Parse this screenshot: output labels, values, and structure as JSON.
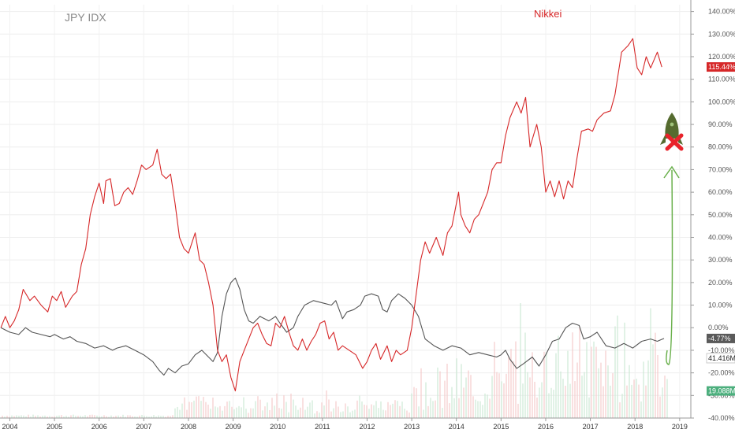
{
  "chart_data": {
    "type": "line",
    "title": "",
    "xlabel": "",
    "ylabel": "",
    "x_ticks": [
      "2004",
      "2005",
      "2006",
      "2007",
      "2008",
      "2009",
      "2010",
      "2011",
      "2012",
      "2013",
      "2014",
      "2015",
      "2016",
      "2017",
      "2018",
      "2019"
    ],
    "y_ticks": [
      "140.00%",
      "130.00%",
      "120.00%",
      "110.00%",
      "100.00%",
      "90.00%",
      "80.00%",
      "70.00%",
      "60.00%",
      "50.00%",
      "40.00%",
      "30.00%",
      "20.00%",
      "10.00%",
      "0.00%",
      "-10.00%",
      "-20.00%",
      "-30.00%",
      "-40.00%"
    ],
    "ylim": [
      -40,
      143
    ],
    "xlim": [
      2003.78,
      2019.25
    ],
    "grid": true,
    "series": [
      {
        "name": "JPY IDX",
        "color": "#555555",
        "points": [
          [
            2003.8,
            0
          ],
          [
            2004.0,
            -2
          ],
          [
            2004.2,
            -3
          ],
          [
            2004.35,
            0
          ],
          [
            2004.5,
            -2
          ],
          [
            2004.7,
            -3
          ],
          [
            2004.9,
            -4
          ],
          [
            2005.0,
            -3
          ],
          [
            2005.2,
            -5
          ],
          [
            2005.35,
            -4
          ],
          [
            2005.5,
            -6
          ],
          [
            2005.7,
            -7
          ],
          [
            2005.9,
            -9
          ],
          [
            2006.1,
            -8
          ],
          [
            2006.3,
            -10
          ],
          [
            2006.4,
            -9
          ],
          [
            2006.6,
            -8
          ],
          [
            2006.8,
            -10
          ],
          [
            2007.0,
            -12
          ],
          [
            2007.2,
            -15
          ],
          [
            2007.35,
            -19
          ],
          [
            2007.45,
            -21
          ],
          [
            2007.55,
            -18
          ],
          [
            2007.7,
            -20
          ],
          [
            2007.85,
            -17
          ],
          [
            2008.0,
            -16
          ],
          [
            2008.15,
            -12
          ],
          [
            2008.3,
            -10
          ],
          [
            2008.45,
            -13
          ],
          [
            2008.55,
            -15
          ],
          [
            2008.65,
            -11
          ],
          [
            2008.75,
            5
          ],
          [
            2008.85,
            15
          ],
          [
            2008.95,
            20
          ],
          [
            2009.05,
            22
          ],
          [
            2009.15,
            17
          ],
          [
            2009.25,
            8
          ],
          [
            2009.35,
            3
          ],
          [
            2009.45,
            2
          ],
          [
            2009.6,
            5
          ],
          [
            2009.8,
            3
          ],
          [
            2009.95,
            5
          ],
          [
            2010.05,
            2
          ],
          [
            2010.2,
            -2
          ],
          [
            2010.35,
            0
          ],
          [
            2010.45,
            5
          ],
          [
            2010.6,
            10
          ],
          [
            2010.8,
            12
          ],
          [
            2011.0,
            11
          ],
          [
            2011.2,
            10
          ],
          [
            2011.3,
            12
          ],
          [
            2011.45,
            4
          ],
          [
            2011.55,
            7
          ],
          [
            2011.7,
            8
          ],
          [
            2011.85,
            10
          ],
          [
            2011.95,
            14
          ],
          [
            2012.1,
            15
          ],
          [
            2012.25,
            14
          ],
          [
            2012.35,
            8
          ],
          [
            2012.45,
            7
          ],
          [
            2012.55,
            12
          ],
          [
            2012.7,
            15
          ],
          [
            2012.85,
            13
          ],
          [
            2013.0,
            10
          ],
          [
            2013.15,
            5
          ],
          [
            2013.3,
            -5
          ],
          [
            2013.5,
            -8
          ],
          [
            2013.7,
            -10
          ],
          [
            2013.9,
            -8
          ],
          [
            2014.1,
            -9
          ],
          [
            2014.3,
            -12
          ],
          [
            2014.5,
            -11
          ],
          [
            2014.7,
            -12
          ],
          [
            2014.9,
            -13
          ],
          [
            2015.0,
            -12
          ],
          [
            2015.1,
            -10
          ],
          [
            2015.2,
            -14
          ],
          [
            2015.35,
            -18
          ],
          [
            2015.5,
            -16
          ],
          [
            2015.7,
            -13
          ],
          [
            2015.85,
            -17
          ],
          [
            2016.0,
            -12
          ],
          [
            2016.15,
            -6
          ],
          [
            2016.3,
            -5
          ],
          [
            2016.45,
            0
          ],
          [
            2016.6,
            2
          ],
          [
            2016.75,
            1
          ],
          [
            2016.85,
            -5
          ],
          [
            2017.0,
            -4
          ],
          [
            2017.15,
            -2
          ],
          [
            2017.35,
            -8
          ],
          [
            2017.55,
            -9
          ],
          [
            2017.75,
            -7
          ],
          [
            2017.95,
            -9
          ],
          [
            2018.15,
            -6
          ],
          [
            2018.35,
            -5
          ],
          [
            2018.5,
            -6
          ],
          [
            2018.65,
            -4.77
          ]
        ]
      },
      {
        "name": "Nikkei",
        "color": "#d62728",
        "points": [
          [
            2003.8,
            0
          ],
          [
            2003.9,
            5
          ],
          [
            2004.0,
            0
          ],
          [
            2004.1,
            3
          ],
          [
            2004.2,
            8
          ],
          [
            2004.3,
            17
          ],
          [
            2004.45,
            12
          ],
          [
            2004.55,
            14
          ],
          [
            2004.7,
            10
          ],
          [
            2004.85,
            7
          ],
          [
            2004.95,
            14
          ],
          [
            2005.05,
            12
          ],
          [
            2005.15,
            16
          ],
          [
            2005.25,
            9
          ],
          [
            2005.4,
            14
          ],
          [
            2005.5,
            16
          ],
          [
            2005.6,
            28
          ],
          [
            2005.7,
            35
          ],
          [
            2005.8,
            50
          ],
          [
            2005.9,
            58
          ],
          [
            2006.0,
            64
          ],
          [
            2006.1,
            55
          ],
          [
            2006.15,
            65
          ],
          [
            2006.25,
            66
          ],
          [
            2006.35,
            54
          ],
          [
            2006.45,
            55
          ],
          [
            2006.55,
            60
          ],
          [
            2006.65,
            62
          ],
          [
            2006.75,
            59
          ],
          [
            2006.85,
            65
          ],
          [
            2006.95,
            72
          ],
          [
            2007.05,
            70
          ],
          [
            2007.2,
            72
          ],
          [
            2007.3,
            79
          ],
          [
            2007.4,
            68
          ],
          [
            2007.5,
            66
          ],
          [
            2007.6,
            68
          ],
          [
            2007.7,
            55
          ],
          [
            2007.8,
            40
          ],
          [
            2007.9,
            35
          ],
          [
            2008.0,
            33
          ],
          [
            2008.15,
            42
          ],
          [
            2008.25,
            30
          ],
          [
            2008.35,
            28
          ],
          [
            2008.45,
            20
          ],
          [
            2008.55,
            10
          ],
          [
            2008.65,
            -10
          ],
          [
            2008.75,
            -15
          ],
          [
            2008.85,
            -12
          ],
          [
            2008.95,
            -22
          ],
          [
            2009.05,
            -28
          ],
          [
            2009.15,
            -15
          ],
          [
            2009.25,
            -10
          ],
          [
            2009.35,
            -5
          ],
          [
            2009.45,
            0
          ],
          [
            2009.55,
            2
          ],
          [
            2009.65,
            -3
          ],
          [
            2009.75,
            -7
          ],
          [
            2009.85,
            -8
          ],
          [
            2009.95,
            2
          ],
          [
            2010.05,
            0
          ],
          [
            2010.15,
            5
          ],
          [
            2010.25,
            -2
          ],
          [
            2010.35,
            -8
          ],
          [
            2010.45,
            -10
          ],
          [
            2010.55,
            -5
          ],
          [
            2010.65,
            -10
          ],
          [
            2010.75,
            -6
          ],
          [
            2010.85,
            -3
          ],
          [
            2010.95,
            2
          ],
          [
            2011.05,
            3
          ],
          [
            2011.15,
            -5
          ],
          [
            2011.25,
            -2
          ],
          [
            2011.35,
            -10
          ],
          [
            2011.45,
            -8
          ],
          [
            2011.6,
            -10
          ],
          [
            2011.75,
            -12
          ],
          [
            2011.9,
            -18
          ],
          [
            2012.0,
            -15
          ],
          [
            2012.1,
            -10
          ],
          [
            2012.2,
            -7
          ],
          [
            2012.3,
            -14
          ],
          [
            2012.45,
            -8
          ],
          [
            2012.55,
            -15
          ],
          [
            2012.65,
            -10
          ],
          [
            2012.75,
            -12
          ],
          [
            2012.9,
            -10
          ],
          [
            2013.0,
            0
          ],
          [
            2013.1,
            15
          ],
          [
            2013.2,
            30
          ],
          [
            2013.3,
            38
          ],
          [
            2013.4,
            33
          ],
          [
            2013.55,
            40
          ],
          [
            2013.7,
            32
          ],
          [
            2013.8,
            42
          ],
          [
            2013.9,
            45
          ],
          [
            2014.0,
            55
          ],
          [
            2014.05,
            60
          ],
          [
            2014.1,
            50
          ],
          [
            2014.2,
            45
          ],
          [
            2014.3,
            42
          ],
          [
            2014.4,
            48
          ],
          [
            2014.5,
            50
          ],
          [
            2014.6,
            55
          ],
          [
            2014.7,
            60
          ],
          [
            2014.8,
            70
          ],
          [
            2014.9,
            73
          ],
          [
            2015.0,
            73
          ],
          [
            2015.1,
            85
          ],
          [
            2015.2,
            93
          ],
          [
            2015.35,
            100
          ],
          [
            2015.45,
            95
          ],
          [
            2015.55,
            102
          ],
          [
            2015.65,
            80
          ],
          [
            2015.8,
            90
          ],
          [
            2015.9,
            80
          ],
          [
            2016.0,
            60
          ],
          [
            2016.1,
            65
          ],
          [
            2016.2,
            58
          ],
          [
            2016.3,
            65
          ],
          [
            2016.4,
            57
          ],
          [
            2016.5,
            65
          ],
          [
            2016.6,
            62
          ],
          [
            2016.7,
            75
          ],
          [
            2016.8,
            87
          ],
          [
            2016.95,
            88
          ],
          [
            2017.05,
            87
          ],
          [
            2017.15,
            92
          ],
          [
            2017.3,
            95
          ],
          [
            2017.45,
            96
          ],
          [
            2017.55,
            103
          ],
          [
            2017.7,
            122
          ],
          [
            2017.85,
            125
          ],
          [
            2017.95,
            128
          ],
          [
            2018.05,
            115
          ],
          [
            2018.15,
            112
          ],
          [
            2018.25,
            120
          ],
          [
            2018.35,
            115
          ],
          [
            2018.5,
            122
          ],
          [
            2018.6,
            115.44
          ]
        ]
      }
    ],
    "annotations": {
      "jpy_label": "JPY IDX",
      "nikkei_label": "Nikkei",
      "badges": [
        {
          "text": "115.44%",
          "color": "#d62728"
        },
        {
          "text": "-4.77%",
          "color": "#5a5a5a"
        },
        {
          "text": "41.416M",
          "color": "#ffffff",
          "text_color": "#222222"
        },
        {
          "text": "19.088M",
          "color": "#4caf7d"
        }
      ],
      "arrow_color": "#6ab04c",
      "rocket_color": "#556b2f",
      "cross_color": "#e8232b"
    }
  }
}
